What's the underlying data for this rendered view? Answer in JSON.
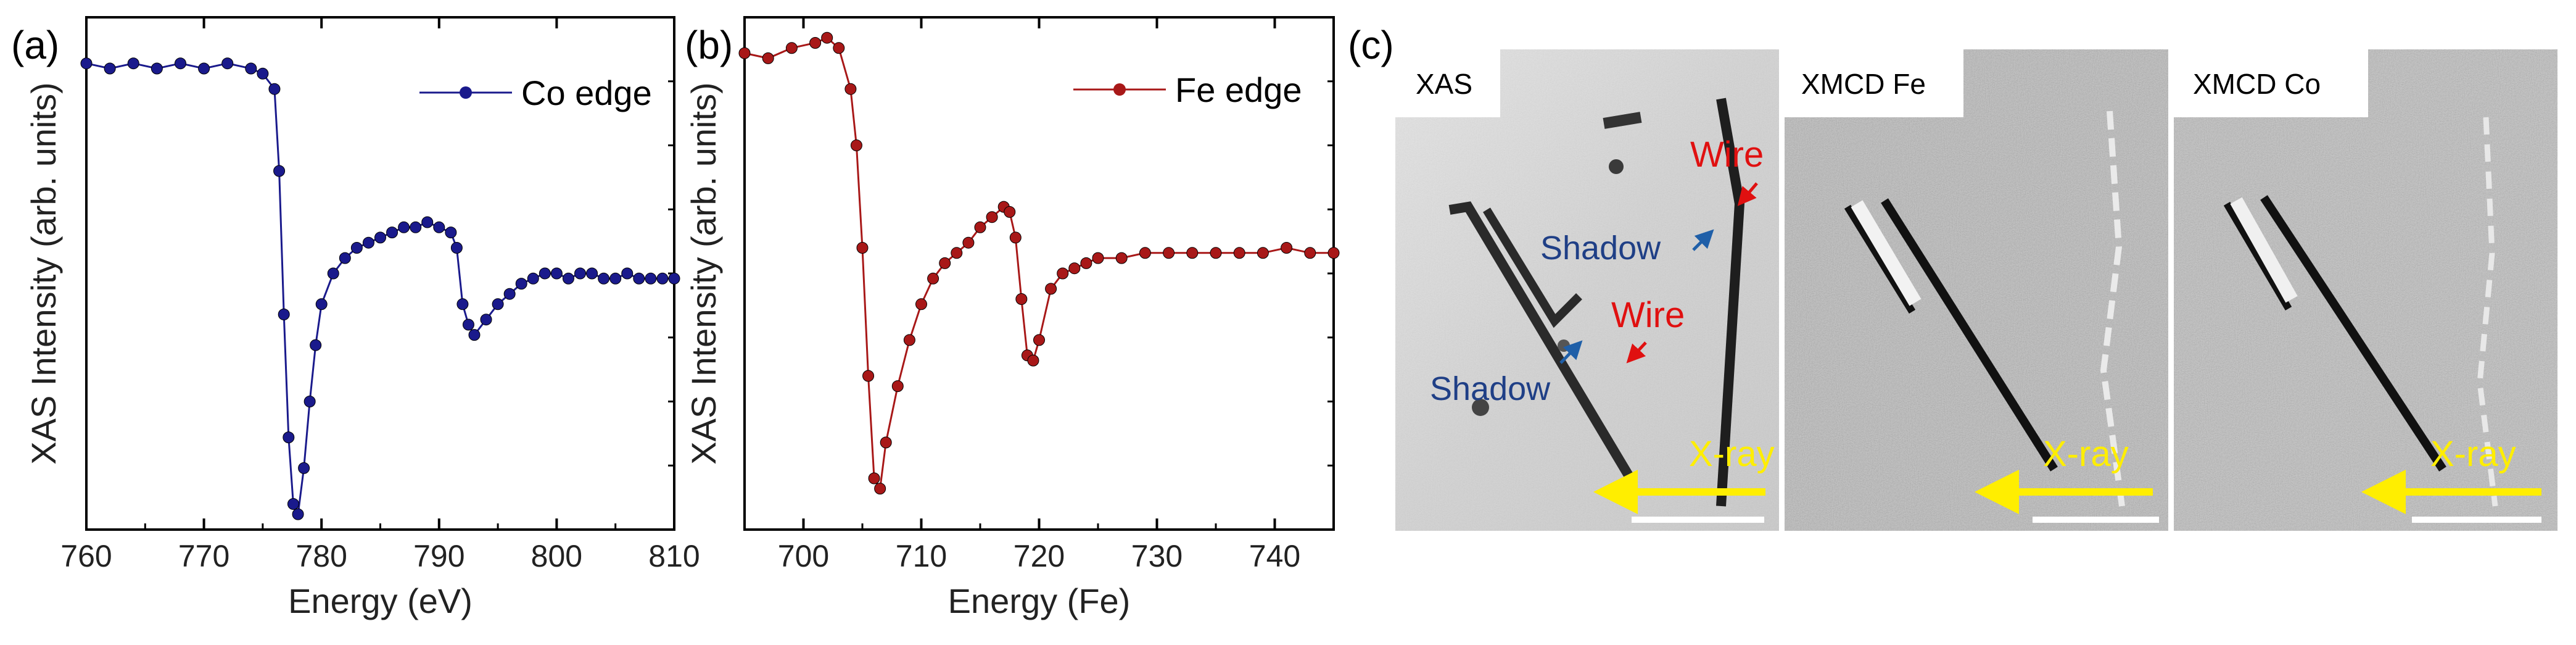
{
  "panels": {
    "a": "(a)",
    "b": "(b)",
    "c": "(c)"
  },
  "chart_data": [
    {
      "type": "line",
      "panel": "(a)",
      "title": "",
      "xlabel": "Energy (eV)",
      "ylabel": "XAS Intensity (arb. units)",
      "xlim": [
        760,
        810
      ],
      "ylim": [
        0,
        1
      ],
      "xticks": [
        760,
        770,
        780,
        790,
        800,
        810
      ],
      "legend": "top-right",
      "color": "#1a1a8c",
      "series": [
        {
          "name": "Co edge",
          "x": [
            760,
            762,
            764,
            766,
            768,
            770,
            772,
            774,
            775,
            776,
            776.4,
            776.8,
            777.2,
            777.6,
            778,
            778.5,
            779,
            779.5,
            780,
            781,
            782,
            783,
            784,
            785,
            786,
            787,
            788,
            789,
            790,
            791,
            791.5,
            792,
            792.5,
            793,
            794,
            795,
            796,
            797,
            798,
            799,
            800,
            801,
            802,
            803,
            804,
            805,
            806,
            807,
            808,
            809,
            810
          ],
          "y": [
            0.91,
            0.9,
            0.91,
            0.9,
            0.91,
            0.9,
            0.91,
            0.9,
            0.89,
            0.86,
            0.7,
            0.42,
            0.18,
            0.05,
            0.03,
            0.12,
            0.25,
            0.36,
            0.44,
            0.5,
            0.53,
            0.55,
            0.56,
            0.57,
            0.58,
            0.59,
            0.59,
            0.6,
            0.59,
            0.58,
            0.55,
            0.44,
            0.4,
            0.38,
            0.41,
            0.44,
            0.46,
            0.48,
            0.49,
            0.5,
            0.5,
            0.49,
            0.5,
            0.5,
            0.49,
            0.49,
            0.5,
            0.49,
            0.49,
            0.49,
            0.49
          ]
        }
      ]
    },
    {
      "type": "line",
      "panel": "(b)",
      "title": "",
      "xlabel": "Energy (Fe)",
      "ylabel": "XAS Intensity (arb. units)",
      "xlim": [
        695,
        745
      ],
      "ylim": [
        0,
        1
      ],
      "xticks": [
        700,
        710,
        720,
        730,
        740
      ],
      "legend": "top-right",
      "color": "#a81818",
      "series": [
        {
          "name": "Fe edge",
          "x": [
            695,
            697,
            699,
            701,
            702,
            703,
            704,
            704.5,
            705,
            705.5,
            706,
            706.5,
            707,
            708,
            709,
            710,
            711,
            712,
            713,
            714,
            715,
            716,
            717,
            717.5,
            718,
            718.5,
            719,
            719.5,
            720,
            721,
            722,
            723,
            724,
            725,
            727,
            729,
            731,
            733,
            735,
            737,
            739,
            741,
            743,
            745
          ],
          "y": [
            0.93,
            0.92,
            0.94,
            0.95,
            0.96,
            0.94,
            0.86,
            0.75,
            0.55,
            0.3,
            0.1,
            0.08,
            0.17,
            0.28,
            0.37,
            0.44,
            0.49,
            0.52,
            0.54,
            0.56,
            0.59,
            0.61,
            0.63,
            0.62,
            0.57,
            0.45,
            0.34,
            0.33,
            0.37,
            0.47,
            0.5,
            0.51,
            0.52,
            0.53,
            0.53,
            0.54,
            0.54,
            0.54,
            0.54,
            0.54,
            0.54,
            0.55,
            0.54,
            0.54
          ]
        }
      ]
    }
  ],
  "images": [
    {
      "title": "XAS",
      "annotations": {
        "wire_top": "Wire",
        "shadow_top": "Shadow",
        "wire_mid": "Wire",
        "shadow_bottom": "Shadow",
        "xray": "X-ray"
      }
    },
    {
      "title": "XMCD Fe",
      "annotations": {
        "xray": "X-ray"
      }
    },
    {
      "title": "XMCD Co",
      "annotations": {
        "xray": "X-ray"
      }
    }
  ]
}
